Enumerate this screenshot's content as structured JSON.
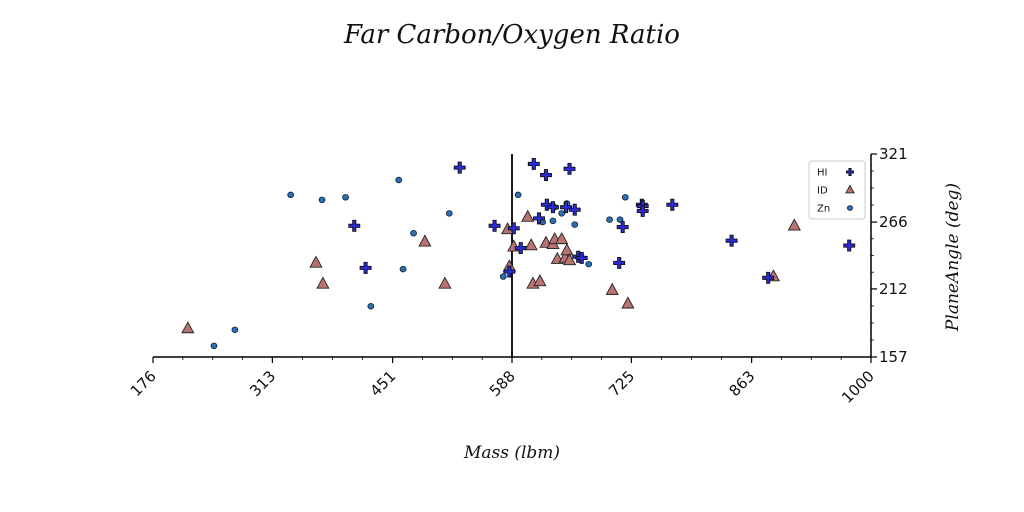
{
  "chart_data": {
    "type": "scatter",
    "title": "Far Carbon/Oxygen Ratio",
    "xlabel": "Mass (lbm)",
    "ylabel": "PlaneAngle (deg)",
    "xlim": [
      176,
      1000
    ],
    "ylim": [
      157,
      321
    ],
    "xticks": [
      "176",
      "313",
      "451",
      "588",
      "725",
      "863",
      "1000"
    ],
    "yticks": [
      "157",
      "212",
      "266",
      "321"
    ],
    "vline_x": 588,
    "legend_position": "top-right",
    "series": [
      {
        "name": "HI",
        "marker": "plus",
        "color": "#2b2bd6",
        "points": [
          [
            407,
            263
          ],
          [
            420,
            229
          ],
          [
            528,
            310
          ],
          [
            568,
            263
          ],
          [
            585,
            226
          ],
          [
            590,
            261
          ],
          [
            598,
            245
          ],
          [
            613,
            313
          ],
          [
            619,
            269
          ],
          [
            627,
            304
          ],
          [
            628,
            280
          ],
          [
            635,
            278
          ],
          [
            650,
            278
          ],
          [
            654,
            309
          ],
          [
            660,
            276
          ],
          [
            664,
            238
          ],
          [
            668,
            237
          ],
          [
            711,
            233
          ],
          [
            715,
            262
          ],
          [
            737,
            280
          ],
          [
            738,
            279
          ],
          [
            738,
            275
          ],
          [
            772,
            280
          ],
          [
            840,
            251
          ],
          [
            882,
            221
          ],
          [
            975,
            247
          ]
        ]
      },
      {
        "name": "ID",
        "marker": "triangle",
        "color": "#b87373",
        "points": [
          [
            216,
            180
          ],
          [
            363,
            233
          ],
          [
            371,
            216
          ],
          [
            488,
            250
          ],
          [
            511,
            216
          ],
          [
            583,
            260
          ],
          [
            585,
            230
          ],
          [
            590,
            246
          ],
          [
            606,
            270
          ],
          [
            610,
            247
          ],
          [
            612,
            216
          ],
          [
            620,
            218
          ],
          [
            627,
            249
          ],
          [
            635,
            248
          ],
          [
            637,
            252
          ],
          [
            640,
            236
          ],
          [
            645,
            252
          ],
          [
            649,
            237
          ],
          [
            651,
            243
          ],
          [
            654,
            235
          ],
          [
            703,
            211
          ],
          [
            721,
            200
          ],
          [
            888,
            222
          ],
          [
            912,
            263
          ]
        ]
      },
      {
        "name": "Zn",
        "marker": "circle",
        "color": "#2d6fb6",
        "points": [
          [
            246,
            166
          ],
          [
            270,
            179
          ],
          [
            334,
            288
          ],
          [
            370,
            284
          ],
          [
            397,
            286
          ],
          [
            426,
            198
          ],
          [
            458,
            300
          ],
          [
            463,
            228
          ],
          [
            475,
            257
          ],
          [
            516,
            273
          ],
          [
            578,
            222
          ],
          [
            595,
            288
          ],
          [
            623,
            266
          ],
          [
            635,
            267
          ],
          [
            637,
            278
          ],
          [
            645,
            273
          ],
          [
            651,
            281
          ],
          [
            660,
            264
          ],
          [
            664,
            238
          ],
          [
            676,
            232
          ],
          [
            700,
            268
          ],
          [
            712,
            268
          ],
          [
            718,
            286
          ]
        ]
      }
    ]
  }
}
